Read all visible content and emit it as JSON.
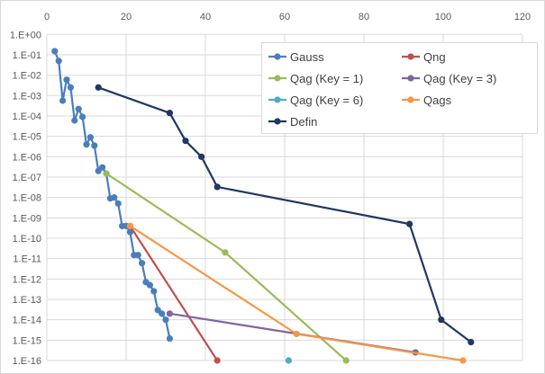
{
  "chart_data": {
    "type": "scatter",
    "title": "",
    "xlabel": "",
    "ylabel": "",
    "xlim": [
      0,
      120
    ],
    "x_ticks": [
      "0",
      "20",
      "40",
      "60",
      "80",
      "100",
      "120"
    ],
    "y_scale": "log",
    "ylim": [
      1e-16,
      1
    ],
    "y_ticks": [
      "1.E+00",
      "1.E-01",
      "1.E-02",
      "1.E-03",
      "1.E-04",
      "1.E-05",
      "1.E-06",
      "1.E-07",
      "1.E-08",
      "1.E-09",
      "1.E-10",
      "1.E-11",
      "1.E-12",
      "1.E-13",
      "1.E-14",
      "1.E-15",
      "1.E-16"
    ],
    "grid": true,
    "legend_position": "top-right",
    "series": [
      {
        "name": "Gauss",
        "color": "#4a7ebb",
        "x": [
          2,
          3,
          4,
          5,
          6,
          7,
          8,
          9,
          10,
          11,
          12,
          13,
          14,
          15,
          16,
          17,
          18,
          19,
          20,
          21,
          22,
          23,
          24,
          25,
          26,
          27,
          28,
          29,
          30,
          31
        ],
        "y": [
          0.15,
          0.05,
          0.00056,
          0.006,
          0.0025,
          6e-05,
          0.00022,
          9e-05,
          4e-06,
          9e-06,
          3.5e-06,
          2e-07,
          3e-07,
          1.5e-07,
          9e-09,
          1e-08,
          5e-09,
          4e-10,
          4e-10,
          2e-10,
          1.5e-11,
          1.5e-11,
          6e-12,
          7e-13,
          5e-13,
          2.5e-13,
          3e-14,
          2e-14,
          1e-14,
          1.2e-15
        ]
      },
      {
        "name": "Qng",
        "color": "#c0504d",
        "x": [
          21,
          43
        ],
        "y": [
          4e-10,
          1e-16
        ]
      },
      {
        "name": "Qag (Key = 1)",
        "color": "#9bbb59",
        "x": [
          15,
          45,
          75.5
        ],
        "y": [
          1.5e-07,
          2e-11,
          1e-16
        ]
      },
      {
        "name": "Qag (Key = 3)",
        "color": "#8064a2",
        "x": [
          31,
          93
        ],
        "y": [
          2e-14,
          2.5e-16
        ]
      },
      {
        "name": "Qag (Key = 6)",
        "color": "#4bacc6",
        "x": [
          61
        ],
        "y": [
          1e-16
        ]
      },
      {
        "name": "Qags",
        "color": "#f79646",
        "x": [
          21,
          63,
          105
        ],
        "y": [
          4e-10,
          2e-15,
          1e-16
        ]
      },
      {
        "name": "Defin",
        "color": "#1f3864",
        "x": [
          13,
          31,
          35,
          39,
          43,
          91.5,
          99.5,
          107
        ],
        "y": [
          0.0025,
          0.00014,
          6e-06,
          1e-06,
          3.3e-08,
          5e-10,
          1e-14,
          8e-16
        ]
      }
    ]
  }
}
